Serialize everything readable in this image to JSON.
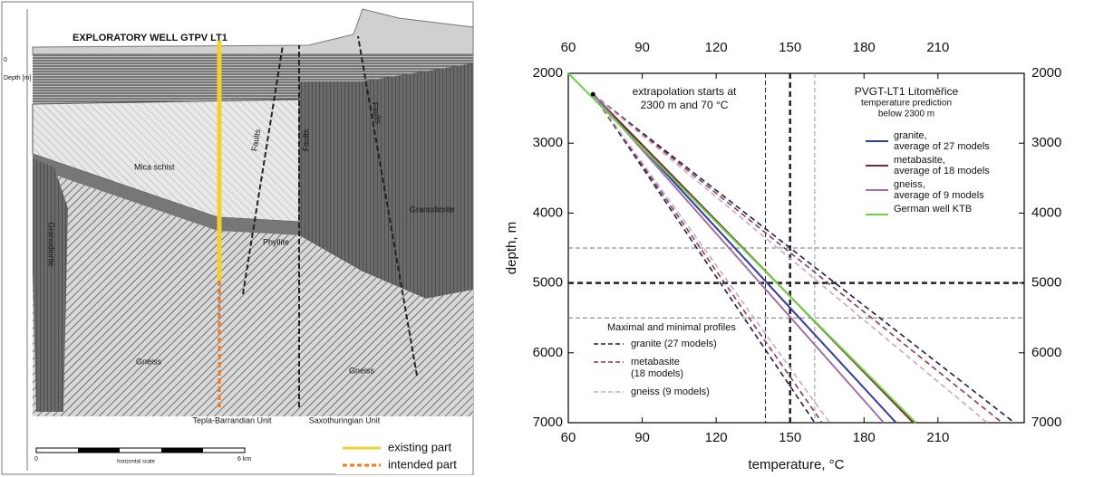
{
  "diagram": {
    "title": "EXPLORATORY WELL GTPV LT1",
    "depth_label": "Depth [m]",
    "zero": "0",
    "units": [
      "Mica schist",
      "Phyllite",
      "Granodiorite",
      "Granodiorite",
      "Gneiss",
      "Gneiss"
    ],
    "faults": [
      "Faults",
      "Faults",
      "Faults"
    ],
    "domains": [
      "Tepla-Barrandian Unit",
      "Saxothuringian Unit"
    ],
    "scale": {
      "start": "0",
      "end": "6 km",
      "caption": "horizontal scale"
    },
    "legend": [
      "existing part",
      "intended part"
    ]
  },
  "chart_data": {
    "type": "line",
    "xlabel": "temperature, °C",
    "ylabel": "depth, m",
    "xlim": [
      60,
      245
    ],
    "xticks": [
      60,
      90,
      120,
      150,
      180,
      210
    ],
    "ylim": [
      2000,
      7000
    ],
    "yticks": [
      2000,
      3000,
      4000,
      5000,
      6000,
      7000
    ],
    "y_inverted": true,
    "y2lim": [
      2000,
      7000
    ],
    "y2ticks": [
      2000,
      3000,
      4000,
      5000,
      6000,
      7000
    ],
    "reference_x": [
      140,
      150,
      160
    ],
    "reference_y": [
      4500,
      5000,
      5500
    ],
    "start_point": {
      "temperature": 70,
      "depth": 2300
    },
    "annotation": [
      "extrapolation starts at",
      "2300 m and 70 °C"
    ],
    "legend_title": [
      "PVGT-LT1 Litoměřice",
      "temperature prediction",
      "below 2300 m"
    ],
    "series": [
      {
        "name": [
          "granite,",
          "average of 27 models"
        ],
        "color": "#2f3aa0",
        "temperature": [
          70,
          193
        ],
        "depth": [
          2300,
          7000
        ]
      },
      {
        "name": [
          "metabasite,",
          "average of 18 models"
        ],
        "color": "#7a2a2a",
        "temperature": [
          70,
          200
        ],
        "depth": [
          2300,
          7000
        ]
      },
      {
        "name": [
          "gneiss,",
          "average of 9 models"
        ],
        "color": "#a070a8",
        "temperature": [
          70,
          188
        ],
        "depth": [
          2300,
          7000
        ]
      },
      {
        "name": [
          "German well KTB"
        ],
        "color": "#6cd24a",
        "temperature": [
          60,
          201
        ],
        "depth": [
          2000,
          7000
        ]
      }
    ],
    "profiles_title": "Maximal and minimal profiles",
    "profiles": [
      {
        "name": [
          "granite (27 models)"
        ],
        "color": "#1c1c4a",
        "max": [
          70,
          241
        ],
        "min": [
          70,
          160
        ],
        "depth": [
          2300,
          7000
        ]
      },
      {
        "name": [
          "metabasite",
          "(18 models)"
        ],
        "color": "#8a3a4a",
        "max": [
          70,
          236
        ],
        "min": [
          70,
          163
        ],
        "depth": [
          2300,
          7000
        ]
      },
      {
        "name": [
          "gneiss (9 models)"
        ],
        "color": "#c8a8c8",
        "max": [
          70,
          230
        ],
        "min": [
          70,
          166
        ],
        "depth": [
          2300,
          7000
        ]
      }
    ]
  }
}
